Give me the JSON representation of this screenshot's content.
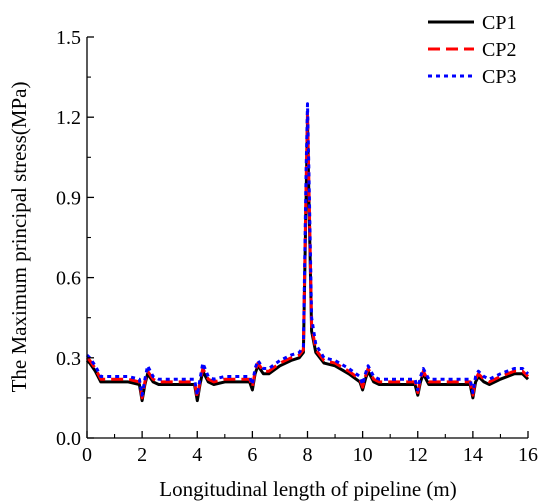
{
  "chart_data": {
    "type": "line",
    "title": "",
    "xlabel": "Longitudinal length of pipeline (m)",
    "ylabel": "The Maximum principal stress(MPa)",
    "xlim": [
      0,
      16
    ],
    "ylim": [
      0,
      1.5
    ],
    "x_ticks": [
      "0",
      "2",
      "4",
      "6",
      "8",
      "10",
      "12",
      "14",
      "16"
    ],
    "y_ticks": [
      "0.0",
      "0.3",
      "0.6",
      "0.9",
      "1.2",
      "1.5"
    ],
    "grid": false,
    "legend_position": "top-right",
    "series": [
      {
        "name": "CP1",
        "color": "#000000",
        "dash": "solid",
        "x": [
          0,
          0.1,
          0.3,
          0.5,
          0.7,
          1.0,
          1.5,
          1.9,
          2.0,
          2.1,
          2.2,
          2.4,
          2.6,
          3.0,
          3.5,
          3.9,
          4.0,
          4.1,
          4.2,
          4.4,
          4.6,
          5.0,
          5.5,
          5.9,
          6.0,
          6.1,
          6.2,
          6.4,
          6.6,
          7.0,
          7.4,
          7.7,
          7.85,
          7.95,
          8.0,
          8.05,
          8.15,
          8.3,
          8.6,
          9.0,
          9.5,
          9.9,
          10.0,
          10.1,
          10.2,
          10.4,
          10.6,
          11.0,
          11.5,
          11.9,
          12.0,
          12.1,
          12.2,
          12.4,
          12.6,
          13.0,
          13.5,
          13.9,
          14.0,
          14.1,
          14.2,
          14.4,
          14.6,
          15.0,
          15.5,
          15.8,
          16.0
        ],
        "y": [
          0.29,
          0.28,
          0.25,
          0.21,
          0.21,
          0.21,
          0.21,
          0.2,
          0.14,
          0.2,
          0.24,
          0.21,
          0.2,
          0.2,
          0.2,
          0.2,
          0.14,
          0.2,
          0.25,
          0.21,
          0.2,
          0.21,
          0.21,
          0.21,
          0.18,
          0.24,
          0.27,
          0.24,
          0.24,
          0.27,
          0.29,
          0.3,
          0.32,
          0.9,
          1.19,
          0.9,
          0.4,
          0.32,
          0.28,
          0.27,
          0.24,
          0.21,
          0.18,
          0.22,
          0.25,
          0.21,
          0.2,
          0.2,
          0.2,
          0.2,
          0.16,
          0.21,
          0.24,
          0.2,
          0.2,
          0.2,
          0.2,
          0.2,
          0.15,
          0.21,
          0.23,
          0.21,
          0.2,
          0.22,
          0.24,
          0.24,
          0.22
        ]
      },
      {
        "name": "CP2",
        "color": "#ff0000",
        "dash": "dashed",
        "x": [
          0,
          0.1,
          0.3,
          0.5,
          0.7,
          1.0,
          1.5,
          1.9,
          2.0,
          2.1,
          2.2,
          2.4,
          2.6,
          3.0,
          3.5,
          3.9,
          4.0,
          4.1,
          4.2,
          4.4,
          4.6,
          5.0,
          5.5,
          5.9,
          6.0,
          6.1,
          6.2,
          6.4,
          6.6,
          7.0,
          7.4,
          7.7,
          7.85,
          7.95,
          8.0,
          8.05,
          8.15,
          8.3,
          8.6,
          9.0,
          9.5,
          9.9,
          10.0,
          10.1,
          10.2,
          10.4,
          10.6,
          11.0,
          11.5,
          11.9,
          12.0,
          12.1,
          12.2,
          12.4,
          12.6,
          13.0,
          13.5,
          13.9,
          14.0,
          14.1,
          14.2,
          14.4,
          14.6,
          15.0,
          15.5,
          15.8,
          16.0
        ],
        "y": [
          0.3,
          0.29,
          0.26,
          0.22,
          0.22,
          0.22,
          0.22,
          0.21,
          0.15,
          0.21,
          0.25,
          0.22,
          0.21,
          0.21,
          0.21,
          0.21,
          0.15,
          0.21,
          0.26,
          0.22,
          0.21,
          0.22,
          0.22,
          0.22,
          0.19,
          0.25,
          0.28,
          0.25,
          0.25,
          0.28,
          0.3,
          0.31,
          0.33,
          0.95,
          1.22,
          0.95,
          0.42,
          0.33,
          0.29,
          0.28,
          0.25,
          0.22,
          0.19,
          0.23,
          0.26,
          0.22,
          0.21,
          0.21,
          0.21,
          0.21,
          0.17,
          0.22,
          0.25,
          0.21,
          0.21,
          0.21,
          0.21,
          0.21,
          0.16,
          0.22,
          0.24,
          0.22,
          0.21,
          0.23,
          0.25,
          0.25,
          0.23
        ]
      },
      {
        "name": "CP3",
        "color": "#0000ff",
        "dash": "dotted",
        "x": [
          0,
          0.1,
          0.3,
          0.5,
          0.7,
          1.0,
          1.5,
          1.9,
          2.0,
          2.1,
          2.2,
          2.4,
          2.6,
          3.0,
          3.5,
          3.9,
          4.0,
          4.1,
          4.2,
          4.4,
          4.6,
          5.0,
          5.5,
          5.9,
          6.0,
          6.1,
          6.2,
          6.4,
          6.6,
          7.0,
          7.4,
          7.7,
          7.85,
          7.95,
          8.0,
          8.05,
          8.15,
          8.3,
          8.6,
          9.0,
          9.5,
          9.9,
          10.0,
          10.1,
          10.2,
          10.4,
          10.6,
          11.0,
          11.5,
          11.9,
          12.0,
          12.1,
          12.2,
          12.4,
          12.6,
          13.0,
          13.5,
          13.9,
          14.0,
          14.1,
          14.2,
          14.4,
          14.6,
          15.0,
          15.5,
          15.8,
          16.0
        ],
        "y": [
          0.31,
          0.3,
          0.27,
          0.23,
          0.23,
          0.23,
          0.23,
          0.22,
          0.16,
          0.22,
          0.27,
          0.23,
          0.22,
          0.22,
          0.22,
          0.22,
          0.16,
          0.22,
          0.28,
          0.23,
          0.22,
          0.23,
          0.23,
          0.23,
          0.2,
          0.26,
          0.29,
          0.26,
          0.26,
          0.29,
          0.31,
          0.32,
          0.34,
          1.0,
          1.25,
          1.0,
          0.45,
          0.35,
          0.3,
          0.29,
          0.26,
          0.23,
          0.2,
          0.24,
          0.27,
          0.23,
          0.22,
          0.22,
          0.22,
          0.22,
          0.18,
          0.23,
          0.26,
          0.22,
          0.22,
          0.22,
          0.22,
          0.22,
          0.17,
          0.23,
          0.25,
          0.23,
          0.22,
          0.24,
          0.26,
          0.26,
          0.24
        ]
      }
    ]
  }
}
